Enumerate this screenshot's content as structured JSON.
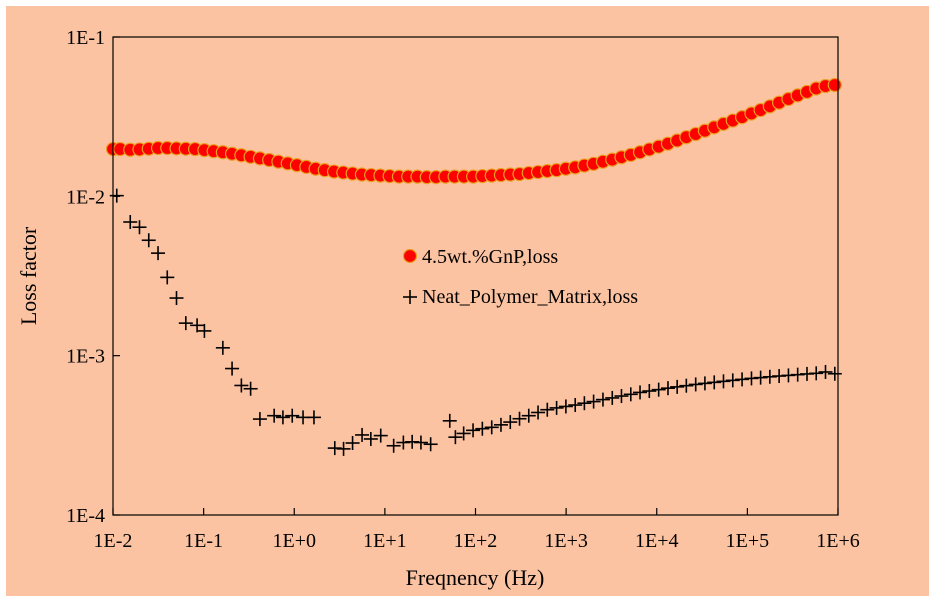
{
  "chart_data": {
    "type": "scatter",
    "title": "",
    "xlabel": "Freqnency (Hz)",
    "ylabel": "Loss factor",
    "x_scale": "log",
    "y_scale": "log",
    "xlim": [
      0.01,
      1000000
    ],
    "ylim": [
      0.0001,
      0.1
    ],
    "x_ticks": [
      {
        "value": 0.01,
        "label": "1E-2"
      },
      {
        "value": 0.1,
        "label": "1E-1"
      },
      {
        "value": 1,
        "label": "1E+0"
      },
      {
        "value": 10,
        "label": "1E+1"
      },
      {
        "value": 100,
        "label": "1E+2"
      },
      {
        "value": 1000,
        "label": "1E+3"
      },
      {
        "value": 10000,
        "label": "1E+4"
      },
      {
        "value": 100000,
        "label": "1E+5"
      },
      {
        "value": 1000000,
        "label": "1E+6"
      }
    ],
    "y_ticks": [
      {
        "value": 0.0001,
        "label": "1E-4"
      },
      {
        "value": 0.001,
        "label": "1E-3"
      },
      {
        "value": 0.01,
        "label": "1E-2"
      },
      {
        "value": 0.1,
        "label": "1E-1"
      }
    ],
    "grid": false,
    "legend_position": "center",
    "background_color": "#fcc3a2",
    "plot_background_color": "#fcc3a2",
    "series": [
      {
        "name": "4.5wt.%GnP,loss",
        "marker": "circle",
        "color": "#ff0000",
        "edge_color": "#e8a020",
        "x": [
          0.01,
          0.012,
          0.0155,
          0.0196,
          0.0248,
          0.0314,
          0.0397,
          0.0502,
          0.0636,
          0.0805,
          0.102,
          0.129,
          0.163,
          0.206,
          0.261,
          0.33,
          0.418,
          0.529,
          0.669,
          0.847,
          1.07,
          1.36,
          1.72,
          2.17,
          2.75,
          3.48,
          4.41,
          5.58,
          7.06,
          8.94,
          11.3,
          14.3,
          18.1,
          22.9,
          29.0,
          36.7,
          46.5,
          58.8,
          74.5,
          94.3,
          119,
          151,
          191,
          242,
          306,
          387,
          490,
          620,
          785,
          994,
          1260,
          1590,
          2010,
          2550,
          3230,
          4080,
          5170,
          6540,
          8280,
          10500,
          13300,
          16800,
          21200,
          26900,
          34000,
          43100,
          54500,
          69000,
          87400,
          111000,
          140000,
          177000,
          224000,
          284000,
          359000,
          455000,
          575000,
          728000,
          922000
        ],
        "y": [
          0.0198,
          0.0198,
          0.0196,
          0.0197,
          0.0199,
          0.0201,
          0.0201,
          0.02,
          0.0199,
          0.0198,
          0.0195,
          0.0192,
          0.0189,
          0.0185,
          0.0181,
          0.0177,
          0.0173,
          0.0169,
          0.0165,
          0.0161,
          0.0157,
          0.0153,
          0.0149,
          0.0146,
          0.0143,
          0.0141,
          0.0139,
          0.0137,
          0.0136,
          0.0135,
          0.0134,
          0.0133,
          0.0133,
          0.0133,
          0.0132,
          0.0132,
          0.0133,
          0.0133,
          0.0133,
          0.0133,
          0.0134,
          0.0135,
          0.0136,
          0.0137,
          0.0138,
          0.014,
          0.0142,
          0.0144,
          0.0146,
          0.0149,
          0.0152,
          0.0156,
          0.016,
          0.0165,
          0.017,
          0.0176,
          0.0182,
          0.0189,
          0.0197,
          0.0205,
          0.0214,
          0.0224,
          0.0235,
          0.0246,
          0.0258,
          0.0271,
          0.0285,
          0.0299,
          0.0314,
          0.0331,
          0.0348,
          0.0367,
          0.0387,
          0.0408,
          0.043,
          0.0452,
          0.0475,
          0.0492,
          0.05
        ]
      },
      {
        "name": "Neat_Polymer_Matrix,loss",
        "marker": "plus",
        "color": "#000000",
        "x": [
          0.011,
          0.0155,
          0.0196,
          0.0248,
          0.0314,
          0.0397,
          0.0502,
          0.0636,
          0.0847,
          0.102,
          0.163,
          0.206,
          0.261,
          0.33,
          0.418,
          0.6,
          0.75,
          0.95,
          1.25,
          1.65,
          2.8,
          3.5,
          4.4,
          5.6,
          7.0,
          9.0,
          12.5,
          16,
          20,
          25,
          32,
          52,
          60,
          74,
          94,
          119,
          151,
          191,
          242,
          306,
          387,
          490,
          620,
          785,
          994,
          1260,
          1590,
          2010,
          2550,
          3230,
          4080,
          5170,
          6540,
          8280,
          10500,
          13300,
          16800,
          21200,
          26900,
          34000,
          43100,
          54500,
          69000,
          87400,
          111000,
          140000,
          177000,
          224000,
          284000,
          359000,
          455000,
          575000,
          728000,
          922000
        ],
        "y": [
          0.0101,
          0.0069,
          0.0064,
          0.0053,
          0.0044,
          0.0031,
          0.0023,
          0.0016,
          0.00155,
          0.00143,
          0.00112,
          0.00083,
          0.00065,
          0.00062,
          0.0004,
          0.00042,
          0.00041,
          0.00042,
          0.00041,
          0.00041,
          0.000263,
          0.00026,
          0.000283,
          0.000318,
          0.0003,
          0.000315,
          0.000272,
          0.000285,
          0.000288,
          0.000285,
          0.000278,
          0.00039,
          0.000308,
          0.000325,
          0.00034,
          0.000348,
          0.000355,
          0.000368,
          0.000383,
          0.000402,
          0.00042,
          0.00044,
          0.000458,
          0.00047,
          0.00048,
          0.00049,
          0.000503,
          0.000515,
          0.00053,
          0.000543,
          0.000558,
          0.000572,
          0.000588,
          0.0006,
          0.000612,
          0.000625,
          0.000637,
          0.000648,
          0.00066,
          0.00067,
          0.00068,
          0.00069,
          0.0007,
          0.00071,
          0.00072,
          0.000728,
          0.000737,
          0.000745,
          0.000752,
          0.00076,
          0.000768,
          0.000775,
          0.00079,
          0.00077
        ]
      }
    ]
  }
}
